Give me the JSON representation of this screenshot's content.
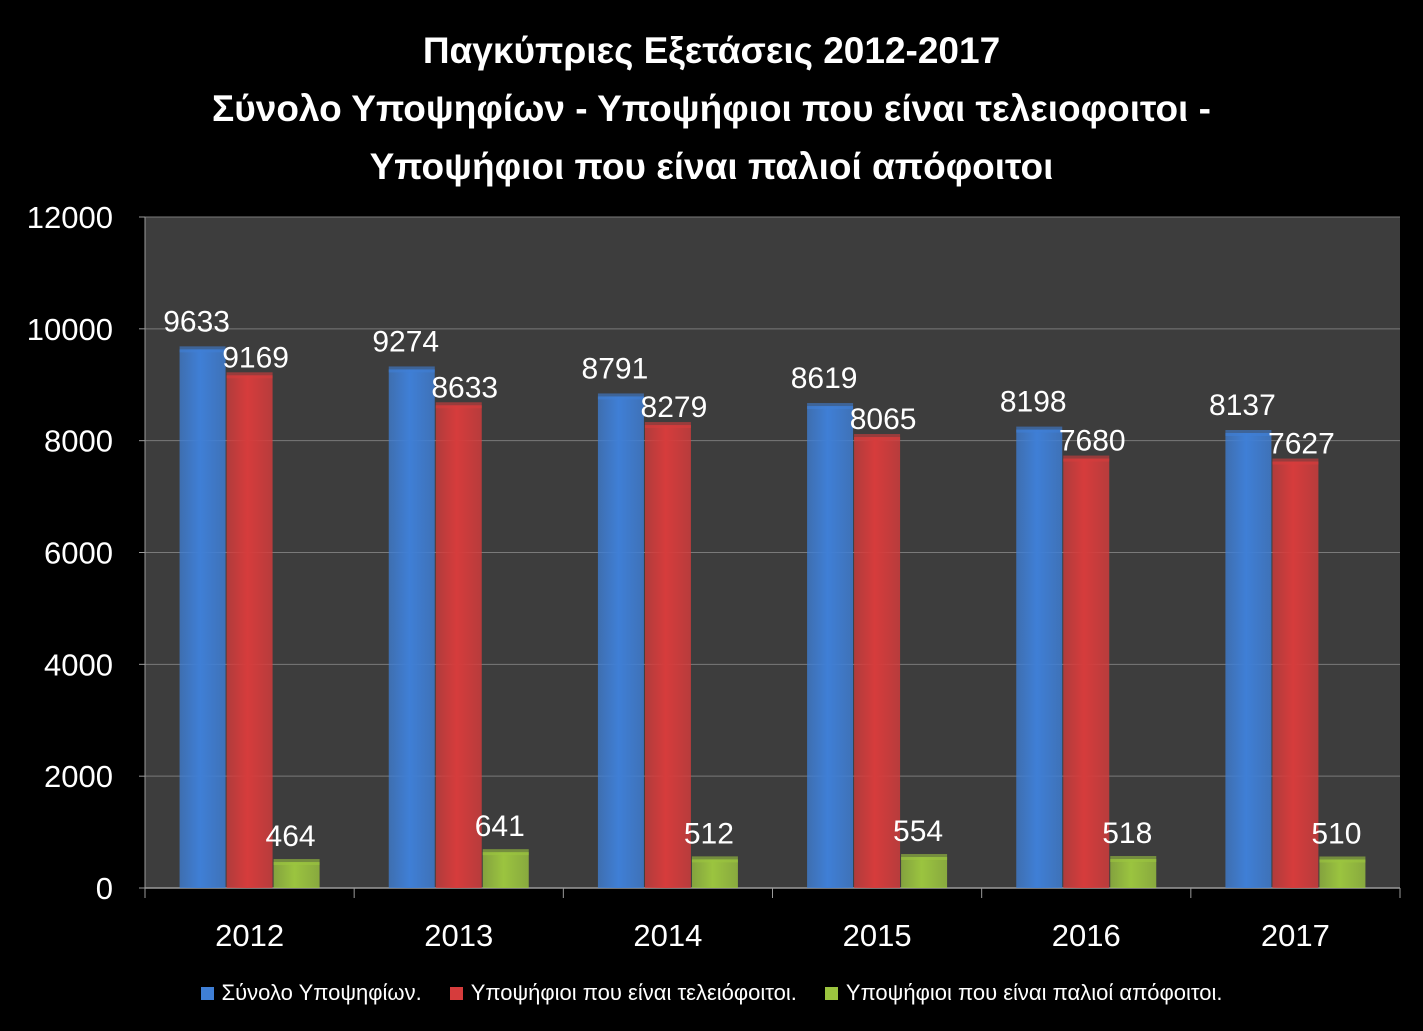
{
  "chart_data": {
    "type": "bar",
    "title_lines": [
      "Παγκύπριες Εξετάσεις 2012-2017",
      "Σύνολο Υποψηφίων - Υποψήφιοι που είναι τελειοφοιτοι -",
      "Υποψήφιοι που είναι παλιοί απόφοιτοι"
    ],
    "categories": [
      "2012",
      "2013",
      "2014",
      "2015",
      "2016",
      "2017"
    ],
    "series": [
      {
        "name": "Σύνολο Υποψηφίων.",
        "color": "#3f7fd6",
        "values": [
          9633,
          9274,
          8791,
          8619,
          8198,
          8137
        ]
      },
      {
        "name": "Υποψήφιοι που είναι τελειόφοιτοι.",
        "color": "#d63c3c",
        "values": [
          9169,
          8633,
          8279,
          8065,
          7680,
          7627
        ]
      },
      {
        "name": "Υποψήφιοι που είναι παλιοί απόφοιτοι.",
        "color": "#9bc43f",
        "values": [
          464,
          641,
          512,
          554,
          518,
          510
        ]
      }
    ],
    "ylim": [
      0,
      12000
    ],
    "yticks": [
      0,
      2000,
      4000,
      6000,
      8000,
      10000,
      12000
    ],
    "grid": true,
    "legend_position": "bottom",
    "plot_background": "#3d3d3d",
    "xlabel": "",
    "ylabel": ""
  }
}
